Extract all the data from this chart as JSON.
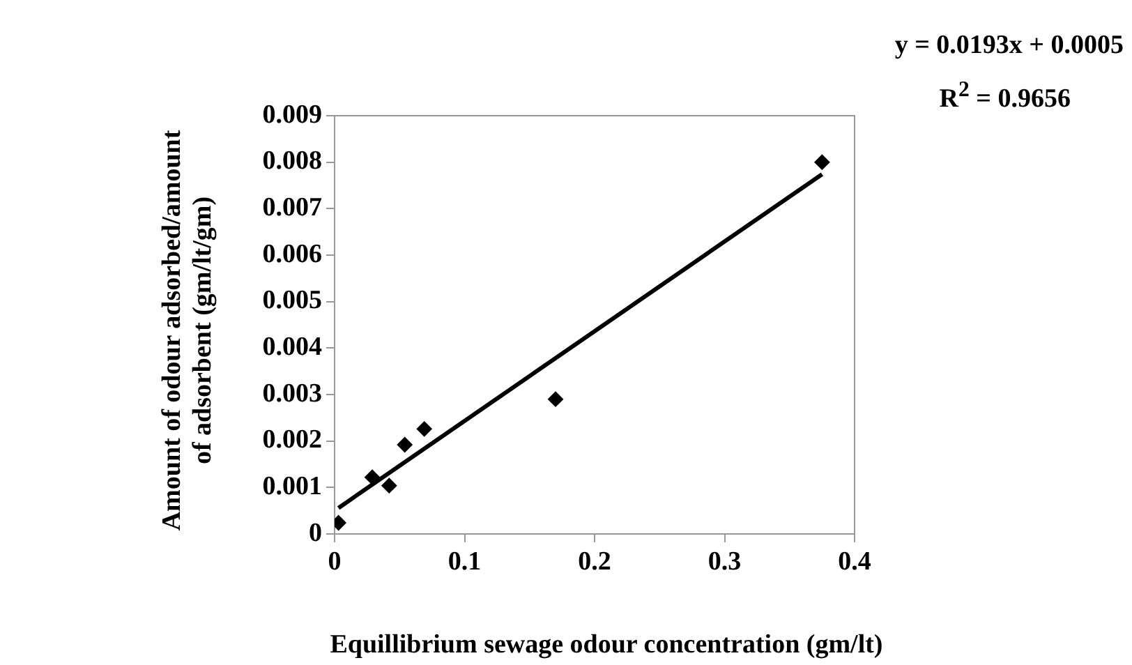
{
  "chart_data": {
    "type": "scatter",
    "xlabel": "Equillibrium sewage odour concentration (gm/lt)",
    "ylabel": "Amount of odour adsorbed/amount of adsorbent (gm/lt/gm)",
    "annotations": [
      "y = 0.0193x + 0.0005",
      "R$^{2}$ = 0.9656"
    ],
    "xlim": [
      0,
      0.4
    ],
    "xticks": [
      0,
      0.1,
      0.2,
      0.3,
      0.4
    ],
    "ylim": [
      0,
      0.009
    ],
    "yticks": [
      0,
      0.001,
      0.002,
      0.003,
      0.004,
      0.005,
      0.006,
      0.007,
      0.008,
      0.009
    ],
    "grid": false,
    "series": [
      {
        "type": "scatter",
        "marker": "diamond",
        "color": "#000000",
        "x": [
          0.003,
          0.029,
          0.042,
          0.054,
          0.069,
          0.17,
          0.375
        ],
        "values": [
          0.00024,
          0.00122,
          0.00104,
          0.00192,
          0.00226,
          0.0029,
          0.008
        ]
      },
      {
        "type": "line",
        "marker": "none",
        "color": "#000000",
        "x": [
          0.003,
          0.375
        ],
        "values": [
          0.00056,
          0.00774
        ]
      }
    ]
  }
}
